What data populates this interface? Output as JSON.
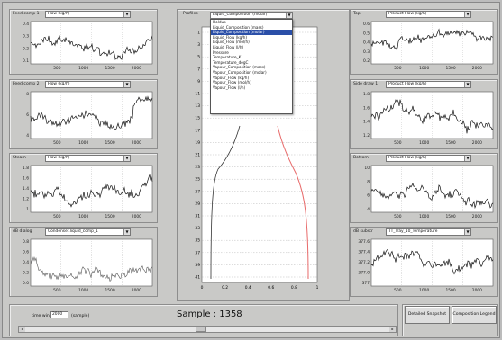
{
  "left_panels": [
    {
      "title": "Feed comp 1",
      "select": "Flow (kg/h)",
      "yticks": [
        "0.4",
        "0.3",
        "0.2",
        "0.1"
      ],
      "xticks": [
        "500",
        "1000",
        "1500",
        "2000"
      ]
    },
    {
      "title": "Feed comp 2",
      "select": "Flow (kg/h)",
      "yticks": [
        "8",
        "6",
        "4"
      ],
      "xticks": [
        "500",
        "1000",
        "1500",
        "2000"
      ]
    },
    {
      "title": "Steam",
      "select": "Flow (kg/h)",
      "yticks": [
        "1.8",
        "1.6",
        "1.4",
        "1.2",
        "1"
      ],
      "xticks": [
        "500",
        "1000",
        "1500",
        "2000"
      ]
    },
    {
      "title": "dB dialog",
      "select": "Condenser.liquid_comp_1",
      "yticks": [
        "0.8",
        "0.6",
        "0.4",
        "0.2",
        "0.0"
      ],
      "xticks": [
        "500",
        "1000",
        "1500",
        "2000"
      ]
    }
  ],
  "right_panels": [
    {
      "title": "Top",
      "select": "Product Flow (kg/h)",
      "yticks": [
        "0.6",
        "0.5",
        "0.4",
        "0.3",
        "0.2"
      ],
      "xticks": [
        "500",
        "1000",
        "1500",
        "2000"
      ]
    },
    {
      "title": "Side draw 1",
      "select": "Product Flow (kg/h)",
      "yticks": [
        "1.8",
        "1.6",
        "1.4",
        "1.2"
      ],
      "xticks": [
        "500",
        "1000",
        "1500",
        "2000"
      ]
    },
    {
      "title": "Bottom",
      "select": "Product Flow (kg/h)",
      "yticks": [
        "10",
        "8",
        "6",
        "4"
      ],
      "xticks": [
        "500",
        "1000",
        "1500",
        "2000"
      ]
    },
    {
      "title": "dB substr",
      "select": "TT_Tray_10_Temperature",
      "yticks": [
        "377.6",
        "377.4",
        "377.2",
        "377.0",
        "377"
      ],
      "xticks": [
        "500",
        "1000",
        "1500",
        "2000"
      ]
    }
  ],
  "profiles": {
    "title": "Profiles",
    "select": "Liquid_Composition (molar)",
    "tray_labels": [
      "1",
      "3",
      "5",
      "7",
      "9",
      "11",
      "13",
      "15",
      "17",
      "19",
      "21",
      "23",
      "25",
      "27",
      "29",
      "31",
      "33",
      "35",
      "37",
      "39",
      "41"
    ],
    "xticks": [
      "0",
      "0.2",
      "0.4",
      "0.6",
      "0.8",
      "1"
    ],
    "dropdown_options": [
      "Holdup",
      "Liquid_Composition (mass)",
      "Liquid_Composition (molar)",
      "Liquid_Flow (kg/h)",
      "Liquid_Flow (mol/h)",
      "Liquid_Flow (l/h)",
      "Pressure",
      "Temperature_K",
      "Temperature_degC",
      "Vapour_Composition (mass)",
      "Vapour_Composition (molar)",
      "Vapour_Flow (kg/h)",
      "Vapour_Flow (mol/h)",
      "Vapour_Flow (l/h)"
    ],
    "highlighted_index": 2
  },
  "footer": {
    "time_window_label": "time window",
    "time_window_value": "2000",
    "time_window_unit": "(sample)",
    "sample_text": "Sample : 1358",
    "detailed_button": "Detailed Snapshot",
    "composition_button": "Composition Legend"
  },
  "colors": {
    "window": "#c9c9c7",
    "profile_red": "#e86a6a",
    "profile_black": "#333333",
    "highlight": "#2b4fa8"
  }
}
